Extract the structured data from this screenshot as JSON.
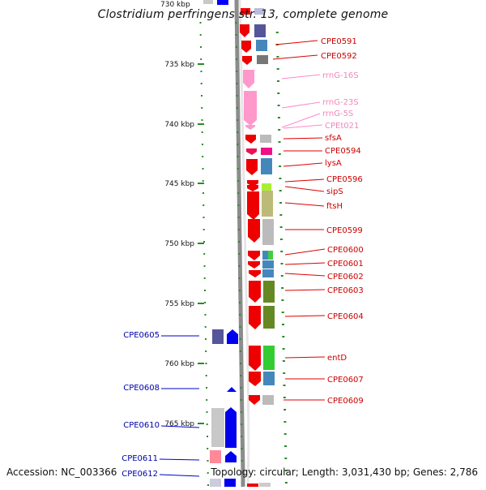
{
  "title": "Clostridium perfringens str. 13, complete genome",
  "footer": {
    "accession": "Accession: NC_003366",
    "info": "Topology: circular; Length: 3,031,430 bp; Genes: 2,786"
  },
  "ruler": {
    "top_partial_label": "730 kbp",
    "ticks": [
      "735 kbp",
      "740 kbp",
      "745 kbp",
      "750 kbp",
      "755 kbp",
      "760 kbp",
      "765 kbp"
    ]
  },
  "genes_right": [
    {
      "label": "CPE0591",
      "type": "cds"
    },
    {
      "label": "CPE0592",
      "type": "cds"
    },
    {
      "label": "rrnG-16S",
      "type": "rrna"
    },
    {
      "label": "rrnG-23S",
      "type": "rrna"
    },
    {
      "label": "rrnG-5S",
      "type": "rrna"
    },
    {
      "label": "CPEt021",
      "type": "rrna"
    },
    {
      "label": "sfsA",
      "type": "cds"
    },
    {
      "label": "CPE0594",
      "type": "cds"
    },
    {
      "label": "lysA",
      "type": "cds"
    },
    {
      "label": "CPE0596",
      "type": "cds"
    },
    {
      "label": "sipS",
      "type": "cds"
    },
    {
      "label": "ftsH",
      "type": "cds"
    },
    {
      "label": "CPE0599",
      "type": "cds"
    },
    {
      "label": "CPE0600",
      "type": "cds"
    },
    {
      "label": "CPE0601",
      "type": "cds"
    },
    {
      "label": "CPE0602",
      "type": "cds"
    },
    {
      "label": "CPE0603",
      "type": "cds"
    },
    {
      "label": "CPE0604",
      "type": "cds"
    },
    {
      "label": "entD",
      "type": "cds"
    },
    {
      "label": "CPE0607",
      "type": "cds"
    },
    {
      "label": "CPE0609",
      "type": "cds"
    }
  ],
  "genes_left": [
    {
      "label": "CPE0605"
    },
    {
      "label": "CPE0608"
    },
    {
      "label": "CPE0610"
    },
    {
      "label": "CPE0611"
    },
    {
      "label": "CPE0612"
    }
  ],
  "colors": {
    "forward_strand": "#ff0000",
    "reverse_strand": "#0000ff",
    "rrna": "#ff88cc",
    "backbone": "#8c8c8c",
    "tick": "#2a8a2a",
    "label_right": "#cc0000",
    "label_rrna": "#ee88bb",
    "label_left": "#0000aa"
  }
}
